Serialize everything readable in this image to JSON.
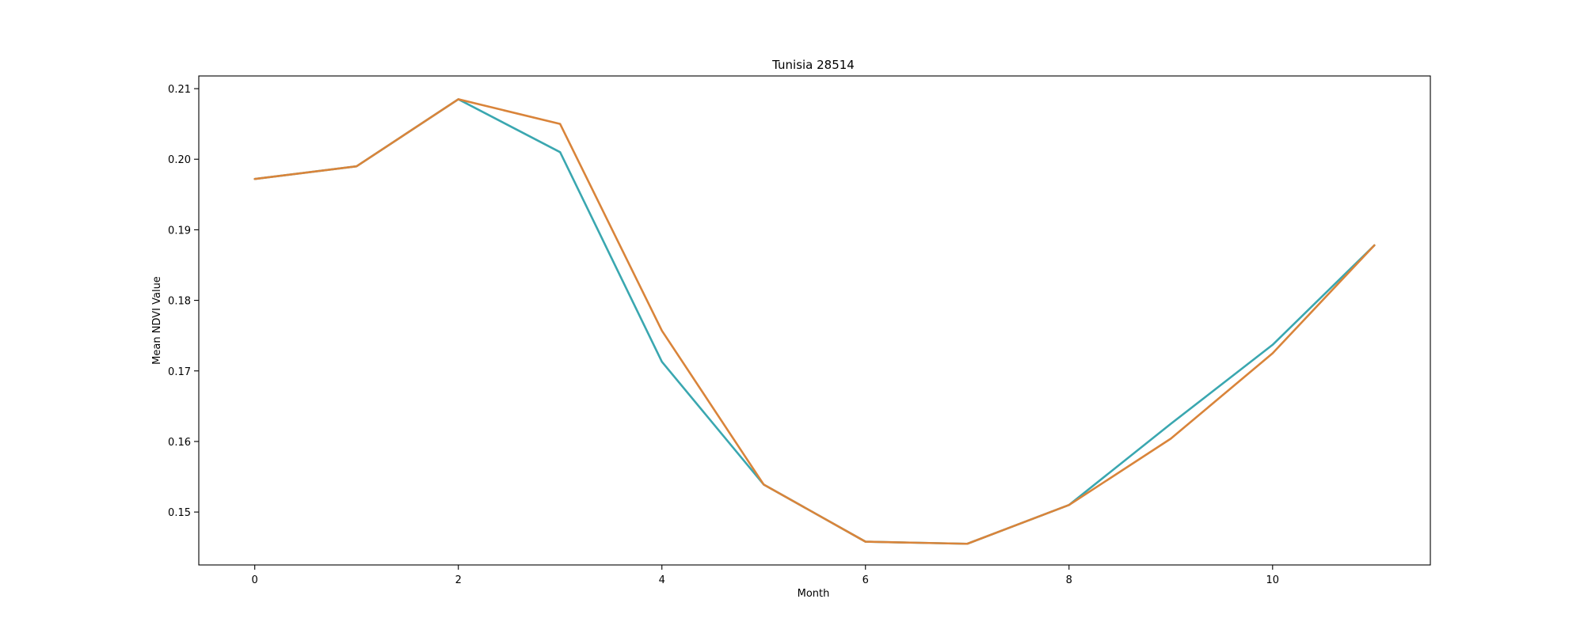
{
  "chart_data": {
    "type": "line",
    "title": "Tunisia 28514",
    "xlabel": "Month",
    "ylabel": "Mean NDVI Value",
    "xlim": [
      -0.55,
      11.55
    ],
    "ylim": [
      0.1425,
      0.2118
    ],
    "x_ticks": [
      0,
      2,
      4,
      6,
      8,
      10
    ],
    "y_ticks": [
      0.15,
      0.16,
      0.17,
      0.18,
      0.19,
      0.2,
      0.21
    ],
    "x_tick_labels": [
      "0",
      "2",
      "4",
      "6",
      "8",
      "10"
    ],
    "y_tick_labels": [
      "0.15",
      "0.16",
      "0.17",
      "0.18",
      "0.19",
      "0.20",
      "0.21"
    ],
    "grid": false,
    "legend": "none",
    "x": [
      0,
      1,
      2,
      3,
      4,
      5,
      6,
      7,
      8,
      9,
      10,
      11
    ],
    "series": [
      {
        "color": "#3aa7b0",
        "values": [
          0.1972,
          0.199,
          0.2085,
          0.201,
          0.1713,
          0.1539,
          0.1458,
          0.1455,
          0.151,
          0.1625,
          0.1737,
          0.1878
        ]
      },
      {
        "color": "#d9843a",
        "values": [
          0.1972,
          0.199,
          0.2085,
          0.205,
          0.1757,
          0.1539,
          0.1458,
          0.1455,
          0.151,
          0.1604,
          0.1725,
          0.1878
        ]
      }
    ]
  }
}
